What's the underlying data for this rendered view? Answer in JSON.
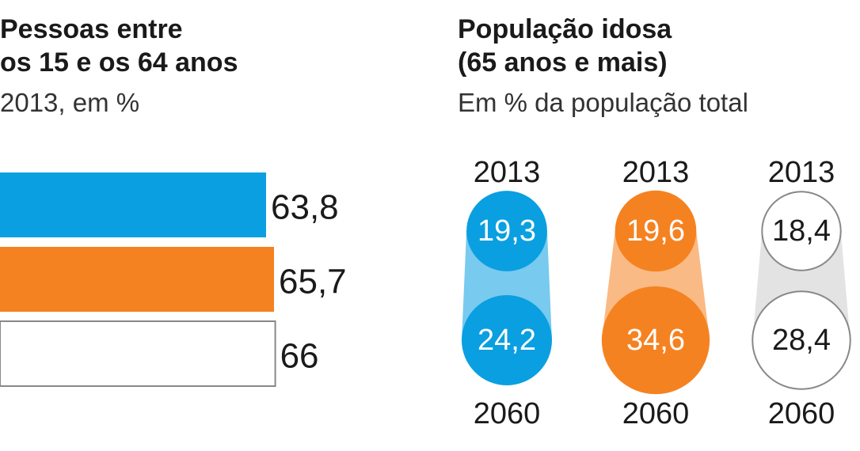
{
  "left": {
    "title_line1": "Pessoas entre",
    "title_line2": "os 15 e os 64 anos",
    "subtitle": "2013, em %"
  },
  "right": {
    "title_line1": "População idosa",
    "title_line2": "(65 anos e mais)",
    "subtitle": "Em % da população total"
  },
  "colors": {
    "blue": "#0a9fe0",
    "orange": "#f58220",
    "white": "#ffffff",
    "outline": "#888888"
  },
  "chart_data": [
    {
      "type": "bar",
      "orientation": "horizontal",
      "title": "Pessoas entre os 15 e os 64 anos",
      "subtitle": "2013, em %",
      "values": [
        63.8,
        65.7,
        66
      ],
      "labels": [
        "63,8",
        "65,7",
        "66"
      ],
      "colors": [
        "#0a9fe0",
        "#f58220",
        "#ffffff"
      ]
    },
    {
      "type": "bubble",
      "title": "População idosa (65 anos e mais)",
      "subtitle": "Em % da população total",
      "x": [
        "2013",
        "2060"
      ],
      "series": [
        {
          "values": [
            19.3,
            24.2
          ],
          "labels": [
            "19,3",
            "24,2"
          ],
          "color": "#0a9fe0"
        },
        {
          "values": [
            19.6,
            34.6
          ],
          "labels": [
            "19,6",
            "34,6"
          ],
          "color": "#f58220"
        },
        {
          "values": [
            18.4,
            28.4
          ],
          "labels": [
            "18,4",
            "28,4"
          ],
          "color": "#ffffff"
        }
      ]
    }
  ]
}
